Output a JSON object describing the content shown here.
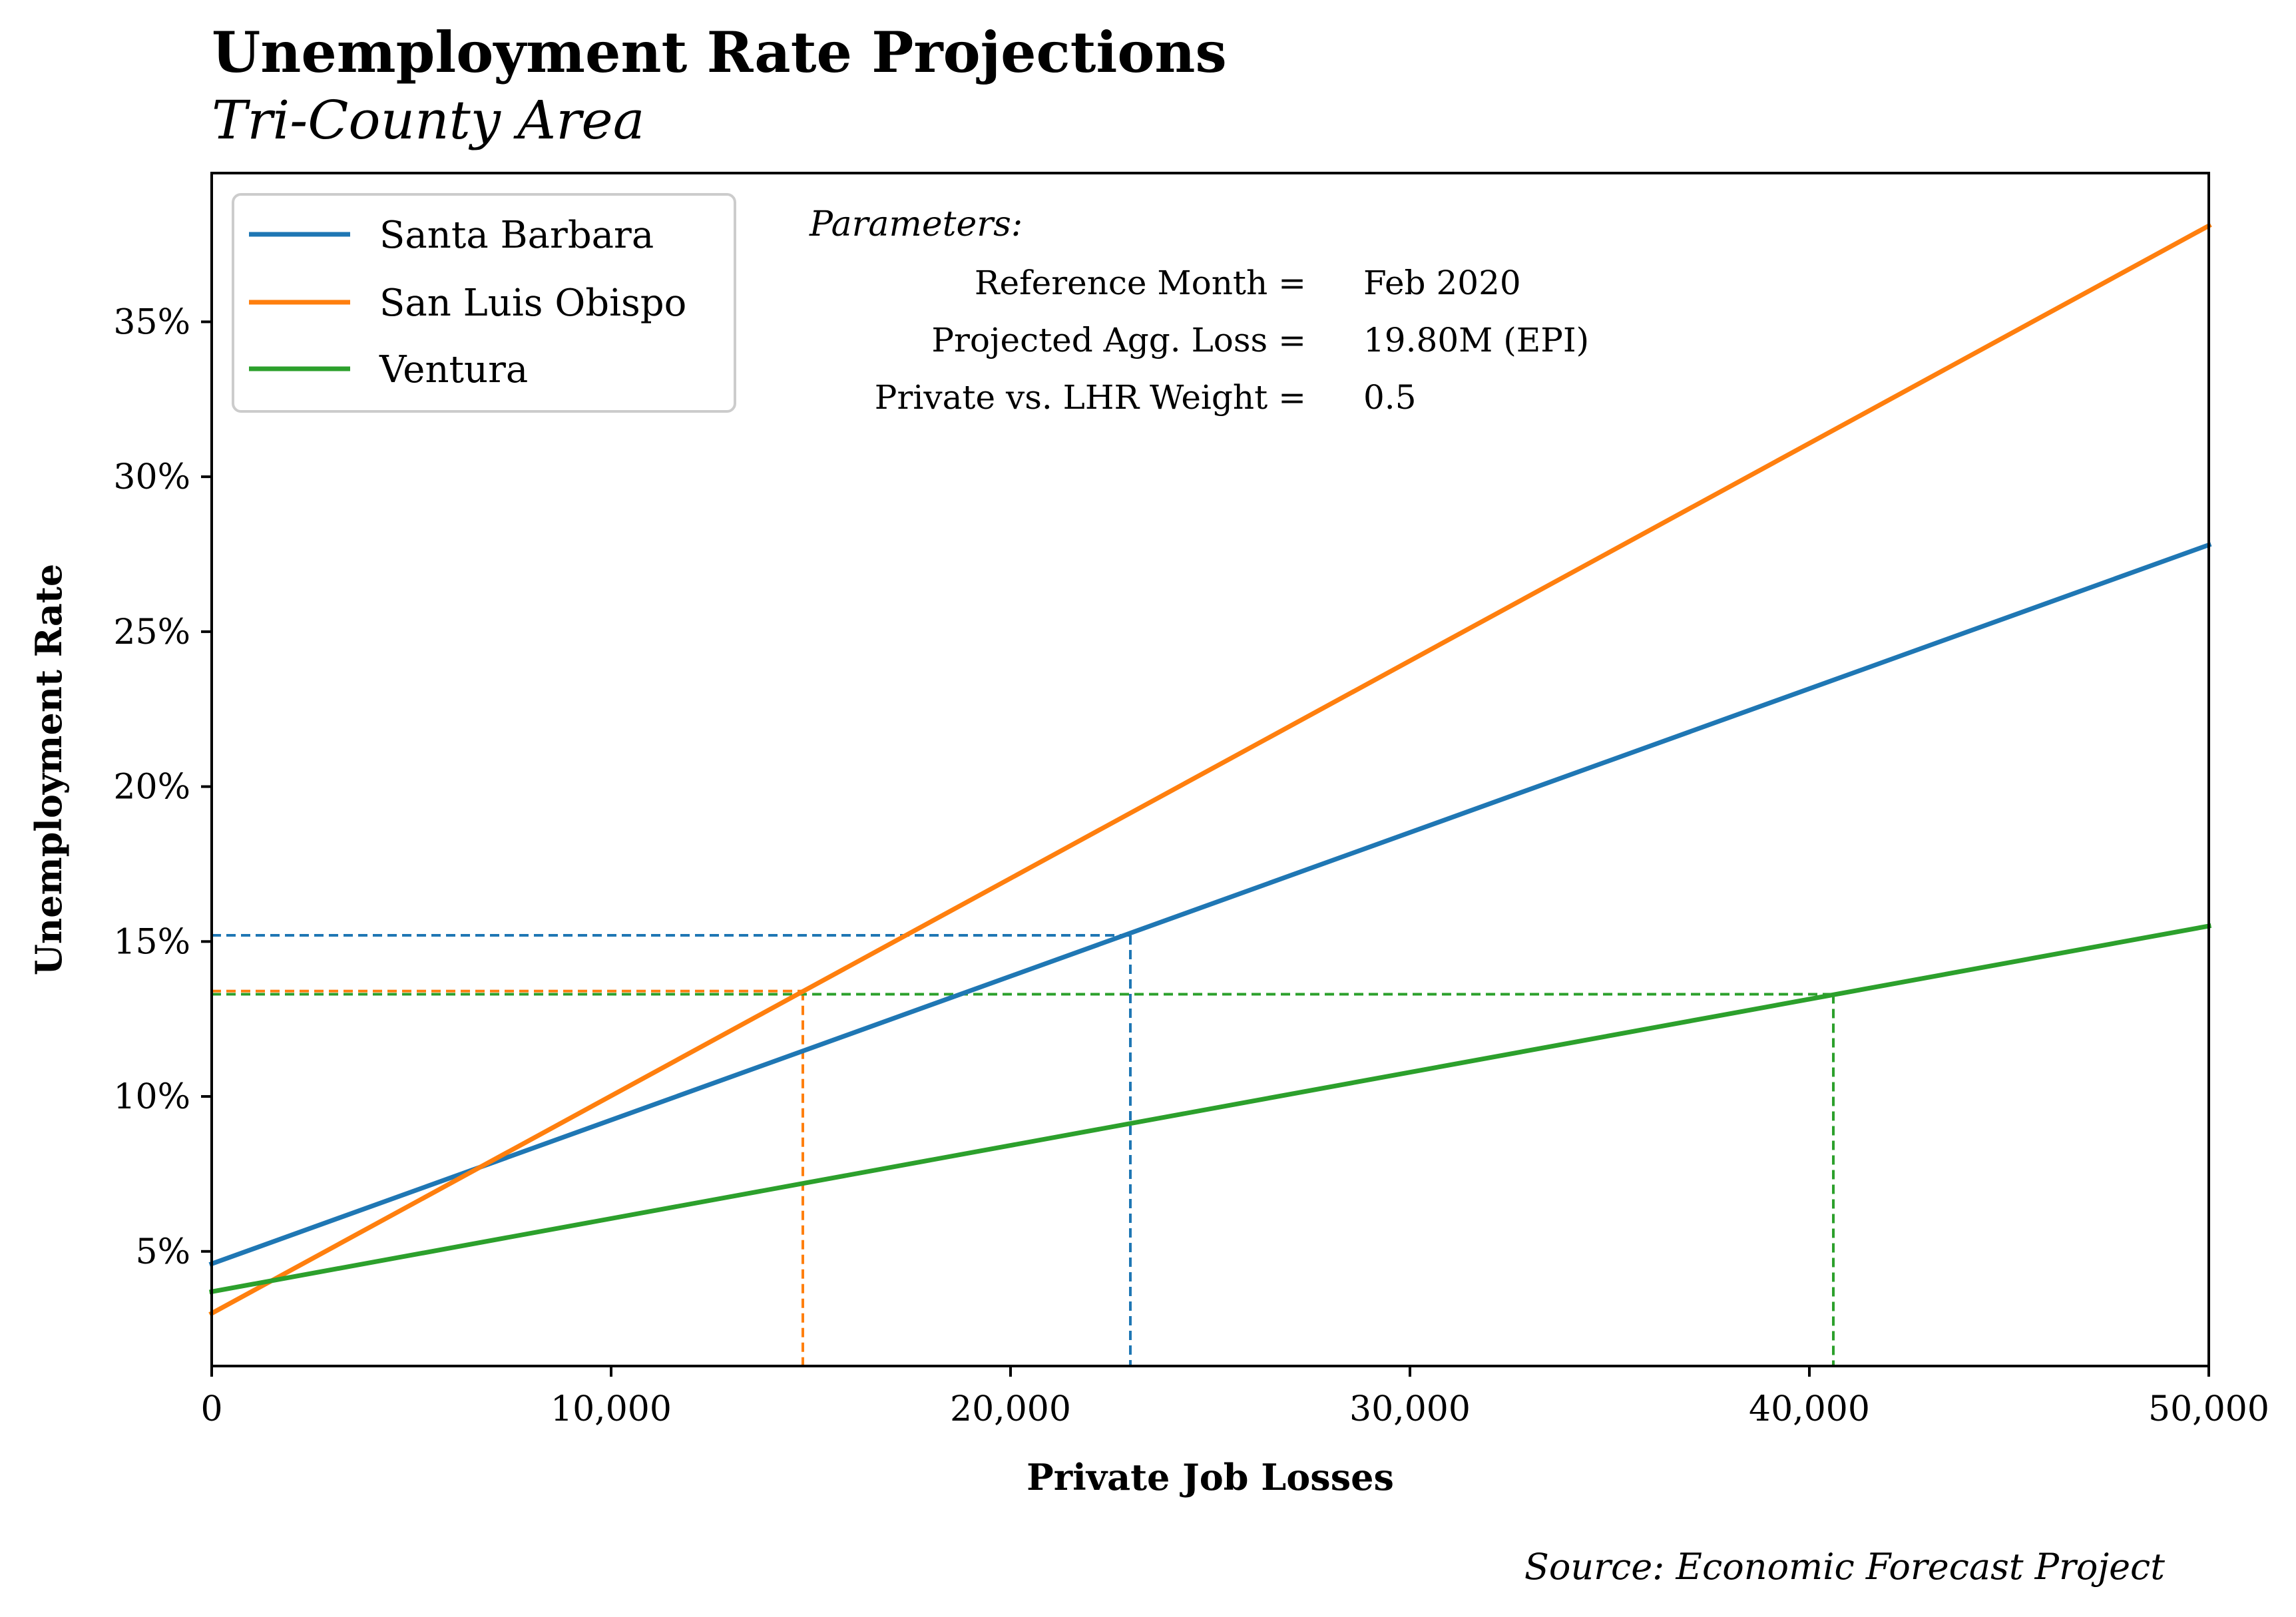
{
  "chart_data": {
    "type": "line",
    "title": "Unemployment Rate Projections",
    "subtitle": "Tri-County Area",
    "xlabel": "Private Job Losses",
    "ylabel": "Unemployment Rate",
    "xlim": [
      0,
      50000
    ],
    "ylim": [
      1.3,
      39.8
    ],
    "x_ticks": [
      0,
      10000,
      20000,
      30000,
      40000,
      50000
    ],
    "x_tick_labels": [
      "0",
      "10,000",
      "20,000",
      "30,000",
      "40,000",
      "50,000"
    ],
    "y_ticks": [
      5,
      10,
      15,
      20,
      25,
      30,
      35
    ],
    "y_tick_labels": [
      "5%",
      "10%",
      "15%",
      "20%",
      "25%",
      "30%",
      "35%"
    ],
    "grid": false,
    "legend_position": "top-left",
    "series": [
      {
        "name": "Santa Barbara",
        "color": "#1f77b4",
        "x": [
          0,
          50000
        ],
        "y": [
          4.6,
          27.8
        ],
        "marker": {
          "x": 23000,
          "y": 15.2
        }
      },
      {
        "name": "San Luis Obispo",
        "color": "#ff7f0e",
        "x": [
          0,
          50000
        ],
        "y": [
          3.0,
          38.1
        ],
        "marker": {
          "x": 14800,
          "y": 13.4
        }
      },
      {
        "name": "Ventura",
        "color": "#2ca02c",
        "x": [
          0,
          50000
        ],
        "y": [
          3.7,
          15.5
        ],
        "marker": {
          "x": 40600,
          "y": 13.3
        }
      }
    ],
    "parameters": {
      "heading": "Parameters:",
      "rows": [
        {
          "label": "Reference Month =",
          "value": "Feb 2020"
        },
        {
          "label": "Projected Agg. Loss =",
          "value": "19.80M (EPI)"
        },
        {
          "label": "Private vs. LHR Weight =",
          "value": "0.5"
        }
      ]
    },
    "source": "Source: Economic Forecast Project"
  }
}
